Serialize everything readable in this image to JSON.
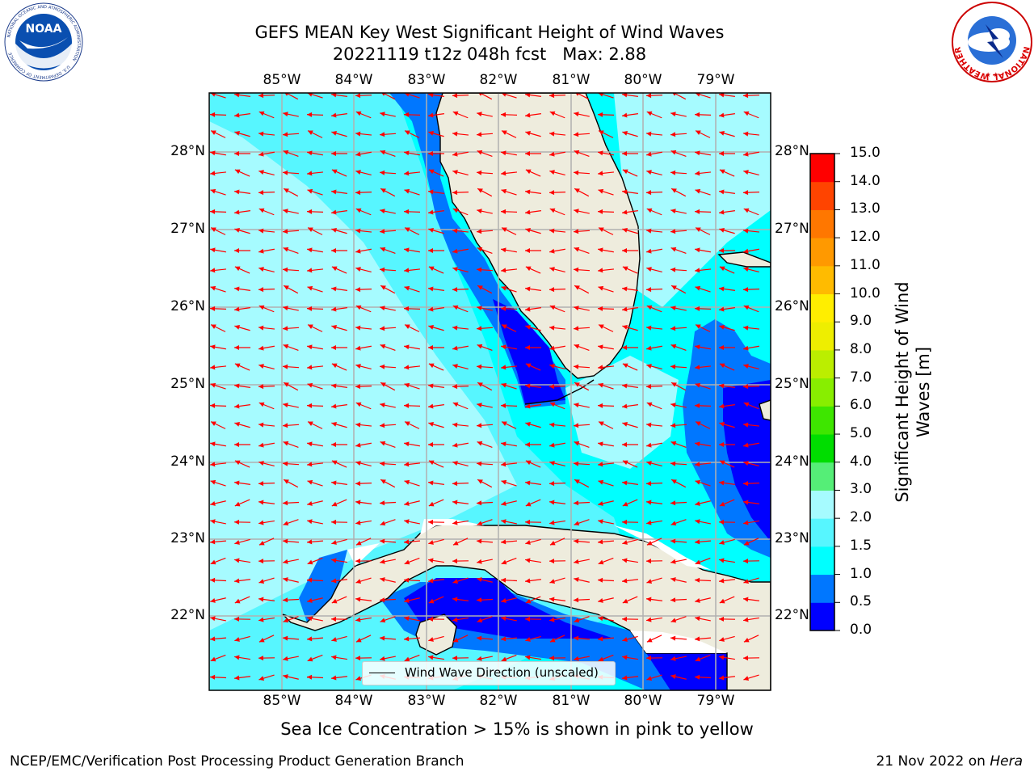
{
  "header": {
    "title_line1": "GEFS MEAN Key West Significant Height of Wind Waves",
    "title_line2": "20221119 t12z 048h fcst   Max: 2.88"
  },
  "logos": {
    "noaa_text": "NOAA",
    "noaa_ring_text": "NATIONAL OCEANIC AND ATMOSPHERIC ADMINISTRATION",
    "noaa_ring_text_bottom": "U.S. DEPARTMENT OF COMMERCE",
    "nws_ring_text": "NATIONAL WEATHER SERVICE"
  },
  "map": {
    "lon_labels": [
      "85°W",
      "84°W",
      "83°W",
      "82°W",
      "81°W",
      "80°W",
      "79°W"
    ],
    "lat_labels": [
      "28°N",
      "27°N",
      "26°N",
      "25°N",
      "24°N",
      "23°N",
      "22°N"
    ],
    "legend_label": "Wind Wave Direction (unscaled)",
    "arrow_color": "#ff0000",
    "land_color": "#eeecdd"
  },
  "colorbar": {
    "label": "Significant Height of Wind Waves [m]",
    "ticks": [
      "15.0",
      "14.0",
      "13.0",
      "12.0",
      "11.0",
      "10.0",
      "9.0",
      "8.0",
      "7.0",
      "6.0",
      "5.0",
      "4.0",
      "3.0",
      "2.0",
      "1.5",
      "1.0",
      "0.5",
      "0.0"
    ],
    "colors": [
      "#0000ff",
      "#0077ff",
      "#00ffff",
      "#57f6ff",
      "#a6fbff",
      "#55ee77",
      "#00dd00",
      "#3ee600",
      "#88ee00",
      "#bbee00",
      "#eeee00",
      "#ffee00",
      "#ffbb00",
      "#ff9900",
      "#ff7700",
      "#ff4400",
      "#ff0000"
    ]
  },
  "notes": {
    "sea_ice": "Sea Ice Concentration > 15% is shown in pink to yellow"
  },
  "footer": {
    "left": "NCEP/EMC/Verification Post Processing Product Generation Branch",
    "right_date": "21 Nov 2022 on ",
    "right_host": "Hera"
  }
}
